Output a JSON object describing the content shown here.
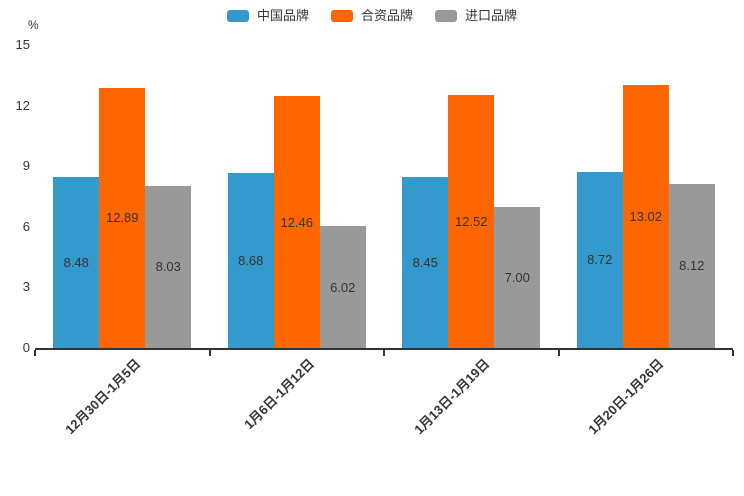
{
  "chart": {
    "unit_label": "%"
  },
  "chart_data": {
    "type": "bar",
    "title": "",
    "categories": [
      "12月30日-1月5日",
      "1月6日-1月12日",
      "1月13日-1月19日",
      "1月20日-1月26日"
    ],
    "series": [
      {
        "name": "中国品牌",
        "key": "china-brand",
        "color": "#3499CC",
        "values": [
          8.48,
          8.68,
          8.45,
          8.72
        ]
      },
      {
        "name": "合资品牌",
        "key": "joint-venture-brand",
        "color": "#FF6600",
        "values": [
          12.89,
          12.46,
          12.52,
          13.02
        ]
      },
      {
        "name": "进口品牌",
        "key": "imported-brand",
        "color": "#999999",
        "values": [
          8.03,
          6.02,
          7.0,
          8.12
        ]
      }
    ],
    "xlabel": "",
    "ylabel": "%",
    "ylim": [
      0,
      15
    ],
    "yticks": [
      0,
      3,
      6,
      9,
      12,
      15
    ],
    "grid": false,
    "legend_position": "top",
    "value_labels": "inside-center",
    "value_label_decimals": 2,
    "x_label_rotation": 45,
    "axis_color": "#333333",
    "text_color": "#333333"
  }
}
